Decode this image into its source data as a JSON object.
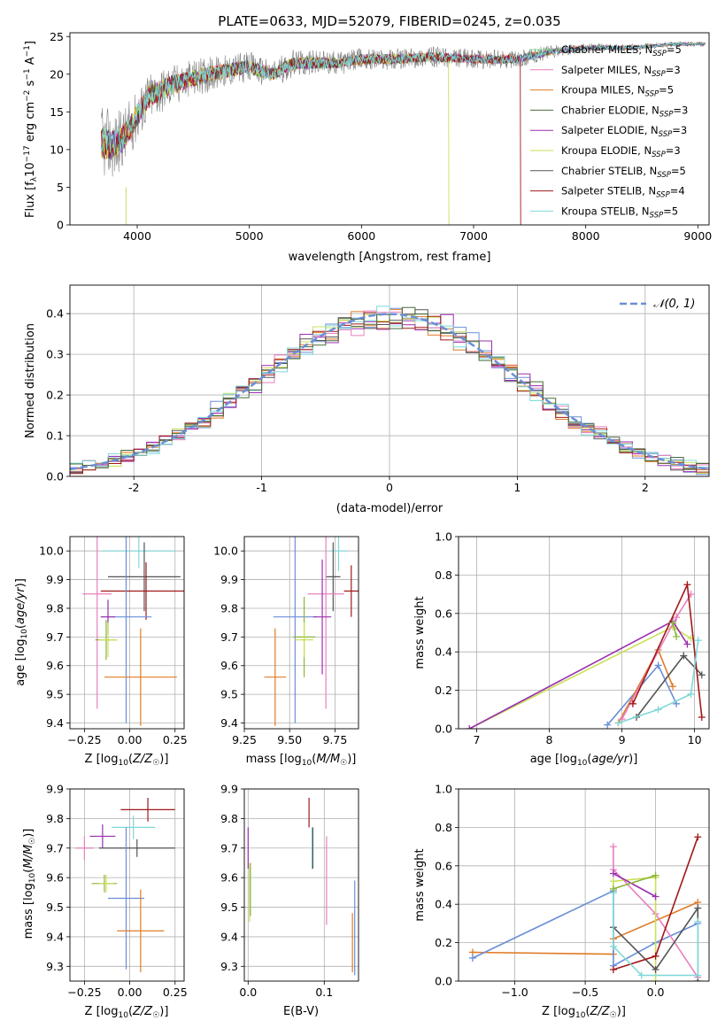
{
  "title": "PLATE=0633, MJD=52079, FIBERID=0245, z=0.035",
  "colors": {
    "Chabrier MILES": "#7fd88a",
    "Salpeter MILES": "#e97fbf",
    "Kroupa MILES": "#e07b26",
    "Chabrier ELODIE": "#4a6b3a",
    "Salpeter ELODIE": "#9a2fb0",
    "Kroupa ELODIE": "#c9e05a",
    "Chabrier STELIB": "#555555",
    "Salpeter STELIB": "#a01818",
    "Kroupa STELIB": "#7fd8d8",
    "blue": "#6a8fd8",
    "olive": "#8ab53a",
    "data": "#808080"
  },
  "chart_data": [
    {
      "id": "spectrum",
      "type": "line",
      "title": "PLATE=0633, MJD=52079, FIBERID=0245, z=0.035",
      "xlabel": "wavelength [Angstrom, rest frame]",
      "ylabel": "Flux [fλ10⁻¹⁷ erg cm⁻² s⁻¹ A⁻¹]",
      "xlim": [
        3400,
        9100
      ],
      "ylim": [
        0,
        25.5
      ],
      "xticks": [
        4000,
        5000,
        6000,
        7000,
        8000,
        9000
      ],
      "yticks": [
        0,
        5,
        10,
        15,
        20,
        25
      ],
      "legend": [
        {
          "label": "Chabrier MILES, N",
          "sub": "SSP",
          "suffix": "=5",
          "key": "Chabrier MILES"
        },
        {
          "label": "Salpeter MILES, N",
          "sub": "SSP",
          "suffix": "=3",
          "key": "Salpeter MILES"
        },
        {
          "label": "Kroupa MILES, N",
          "sub": "SSP",
          "suffix": "=5",
          "key": "Kroupa MILES"
        },
        {
          "label": "Chabrier ELODIE, N",
          "sub": "SSP",
          "suffix": "=3",
          "key": "Chabrier ELODIE"
        },
        {
          "label": "Salpeter ELODIE, N",
          "sub": "SSP",
          "suffix": "=3",
          "key": "Salpeter ELODIE"
        },
        {
          "label": "Kroupa ELODIE, N",
          "sub": "SSP",
          "suffix": "=3",
          "key": "Kroupa ELODIE"
        },
        {
          "label": "Chabrier STELIB, N",
          "sub": "SSP",
          "suffix": "=5",
          "key": "Chabrier STELIB"
        },
        {
          "label": "Salpeter STELIB, N",
          "sub": "SSP",
          "suffix": "=4",
          "key": "Salpeter STELIB"
        },
        {
          "label": "Kroupa STELIB, N",
          "sub": "SSP",
          "suffix": "=5",
          "key": "Kroupa STELIB"
        }
      ],
      "legend_loc": "upper right",
      "continuum": [
        [
          3680,
          11
        ],
        [
          3800,
          10.5
        ],
        [
          3900,
          12
        ],
        [
          4000,
          14.5
        ],
        [
          4100,
          17
        ],
        [
          4300,
          18.5
        ],
        [
          4500,
          19.5
        ],
        [
          4800,
          20.5
        ],
        [
          5000,
          21
        ],
        [
          5200,
          20
        ],
        [
          5400,
          21.5
        ],
        [
          5800,
          21.5
        ],
        [
          6000,
          22
        ],
        [
          6300,
          22
        ],
        [
          6600,
          22.3
        ],
        [
          7000,
          22
        ],
        [
          7400,
          22
        ],
        [
          7700,
          23
        ],
        [
          8000,
          23.5
        ],
        [
          8400,
          23.5
        ],
        [
          8800,
          24
        ],
        [
          9070,
          24
        ]
      ],
      "noise_amp": [
        [
          3680,
          5
        ],
        [
          4000,
          3.5
        ],
        [
          4500,
          2.5
        ],
        [
          5000,
          2
        ],
        [
          6000,
          1.5
        ],
        [
          7400,
          1.2
        ],
        [
          8000,
          0.6
        ],
        [
          9070,
          0.3
        ]
      ],
      "data_start": 3680,
      "models_start": 3680,
      "drops": [
        {
          "key": "Salpeter STELIB",
          "x": 7420
        },
        {
          "key": "Kroupa ELODIE",
          "x": 6780
        },
        {
          "key": "Kroupa ELODIE",
          "x": 3900
        }
      ]
    },
    {
      "id": "residuals",
      "type": "histogram",
      "xlabel": "(data-model)/error",
      "ylabel": "Normed distribution",
      "xlim": [
        -2.5,
        2.5
      ],
      "ylim": [
        0,
        0.47
      ],
      "xticks": [
        -2,
        -1,
        0,
        1,
        2
      ],
      "yticks": [
        0,
        0.1,
        0.2,
        0.3,
        0.4
      ],
      "bin_width": 0.1,
      "legend": [
        {
          "label": "𝒩(0, 1)",
          "style": "dashed",
          "color": "#6a8fd8"
        }
      ],
      "legend_loc": "upper right"
    },
    {
      "id": "age_vs_Z",
      "type": "errorbar",
      "xlabel": "Z [log₁₀(Z/Z☉)]",
      "ylabel": "age  [log₁₀(age/yr)]",
      "xlim": [
        -0.33,
        0.3
      ],
      "ylim": [
        9.38,
        10.05
      ],
      "xticks": [
        -0.25,
        0.0,
        0.25
      ],
      "xticklabels": [
        "−0.25",
        "0.00",
        "0.25"
      ],
      "yticks": [
        9.4,
        9.5,
        9.6,
        9.7,
        9.8,
        9.9,
        10.0
      ],
      "points": [
        {
          "key": "Kroupa STELIB",
          "x": 0.05,
          "xerr": 0.2,
          "y": 10.0,
          "yerr": 0.06
        },
        {
          "key": "Chabrier STELIB",
          "x": 0.08,
          "xerr": 0.2,
          "y": 9.91,
          "yerr": 0.12
        },
        {
          "key": "Salpeter STELIB",
          "x": 0.09,
          "xerr": 0.25,
          "y": 9.86,
          "yerr": 0.1
        },
        {
          "key": "Salpeter MILES",
          "x": -0.18,
          "xerr": 0.08,
          "y": 9.85,
          "yerr": 0.4
        },
        {
          "key": "blue",
          "x": -0.02,
          "xerr": 0.14,
          "y": 9.77,
          "yerr": 0.37
        },
        {
          "key": "Salpeter ELODIE",
          "x": -0.12,
          "xerr": 0.04,
          "y": 9.77,
          "yerr": 0.06
        },
        {
          "key": "olive",
          "x": -0.13,
          "xerr": 0.06,
          "y": 9.69,
          "yerr": 0.07
        },
        {
          "key": "Kroupa ELODIE",
          "x": -0.12,
          "xerr": 0.05,
          "y": 9.69,
          "yerr": 0.06
        },
        {
          "key": "Kroupa MILES",
          "x": 0.06,
          "xerr": 0.2,
          "y": 9.56,
          "yerr": 0.17
        }
      ]
    },
    {
      "id": "age_vs_mass",
      "type": "errorbar",
      "xlabel": "mass [log₁₀(M/M☉)]",
      "ylabel": "",
      "xlim": [
        9.25,
        9.88
      ],
      "ylim": [
        9.38,
        10.05
      ],
      "xticks": [
        9.25,
        9.5,
        9.75
      ],
      "xticklabels": [
        "9.25",
        "9.50",
        "9.75"
      ],
      "yticks": [
        9.4,
        9.5,
        9.6,
        9.7,
        9.8,
        9.9,
        10.0
      ],
      "points": [
        {
          "key": "Kroupa STELIB",
          "x": 9.77,
          "xerr": 0.05,
          "y": 10.0,
          "yerr": 0.07
        },
        {
          "key": "Chabrier STELIB",
          "x": 9.74,
          "xerr": 0.04,
          "y": 9.91,
          "yerr": 0.12
        },
        {
          "key": "Salpeter STELIB",
          "x": 9.84,
          "xerr": 0.04,
          "y": 9.86,
          "yerr": 0.09
        },
        {
          "key": "Salpeter MILES",
          "x": 9.7,
          "xerr": 0.1,
          "y": 9.85,
          "yerr": 0.4
        },
        {
          "key": "blue",
          "x": 9.53,
          "xerr": 0.12,
          "y": 9.77,
          "yerr": 0.37
        },
        {
          "key": "Salpeter ELODIE",
          "x": 9.68,
          "xerr": 0.05,
          "y": 9.77,
          "yerr": 0.2
        },
        {
          "key": "olive",
          "x": 9.58,
          "xerr": 0.06,
          "y": 9.7,
          "yerr": 0.14
        },
        {
          "key": "Kroupa ELODIE",
          "x": 9.58,
          "xerr": 0.05,
          "y": 9.69,
          "yerr": 0.06
        },
        {
          "key": "Kroupa MILES",
          "x": 9.42,
          "xerr": 0.06,
          "y": 9.56,
          "yerr": 0.17
        }
      ]
    },
    {
      "id": "mass_weight_vs_age",
      "type": "line",
      "xlabel": "age  [log₁₀(age/yr)]",
      "ylabel": "mass weight",
      "xlim": [
        6.75,
        10.2
      ],
      "ylim": [
        0,
        1.0
      ],
      "xticks": [
        7,
        8,
        9,
        10
      ],
      "yticks": [
        0.0,
        0.2,
        0.4,
        0.6,
        0.8,
        1.0
      ],
      "series": [
        {
          "key": "Kroupa ELODIE",
          "x": [
            6.9,
            9.7,
            9.95
          ],
          "y": [
            0.0,
            0.53,
            0.47
          ]
        },
        {
          "key": "Salpeter ELODIE",
          "x": [
            6.9,
            9.7,
            9.9
          ],
          "y": [
            0.0,
            0.56,
            0.44
          ]
        },
        {
          "key": "blue",
          "x": [
            8.8,
            9.5,
            9.75
          ],
          "y": [
            0.02,
            0.33,
            0.13
          ]
        },
        {
          "key": "Kroupa MILES",
          "x": [
            8.95,
            9.5,
            9.7
          ],
          "y": [
            0.03,
            0.41,
            0.22
          ]
        },
        {
          "key": "Salpeter MILES",
          "x": [
            9.0,
            9.75,
            9.95
          ],
          "y": [
            0.05,
            0.58,
            0.7
          ]
        },
        {
          "key": "Chabrier STELIB",
          "x": [
            9.2,
            9.85,
            10.1
          ],
          "y": [
            0.06,
            0.38,
            0.28
          ]
        },
        {
          "key": "Salpeter STELIB",
          "x": [
            9.15,
            9.9,
            10.1
          ],
          "y": [
            0.13,
            0.75,
            0.06
          ]
        },
        {
          "key": "Kroupa STELIB",
          "x": [
            8.95,
            9.5,
            9.95,
            10.05
          ],
          "y": [
            0.03,
            0.1,
            0.18,
            0.46
          ]
        },
        {
          "key": "olive",
          "x": [
            9.7,
            9.75
          ],
          "y": [
            0.55,
            0.48
          ]
        }
      ]
    },
    {
      "id": "mass_vs_Z",
      "type": "errorbar",
      "xlabel": "Z [log₁₀(Z/Z☉)]",
      "ylabel": "mass [log₁₀(M/M☉)]",
      "xlim": [
        -0.33,
        0.3
      ],
      "ylim": [
        9.25,
        9.9
      ],
      "xticks": [
        -0.25,
        0.0,
        0.25
      ],
      "xticklabels": [
        "−0.25",
        "0.00",
        "0.25"
      ],
      "yticks": [
        9.3,
        9.4,
        9.5,
        9.6,
        9.7,
        9.8,
        9.9
      ],
      "points": [
        {
          "key": "Salpeter STELIB",
          "x": 0.1,
          "xerr": 0.15,
          "y": 9.83,
          "yerr": 0.04
        },
        {
          "key": "Kroupa STELIB",
          "x": 0.02,
          "xerr": 0.12,
          "y": 9.77,
          "yerr": 0.04
        },
        {
          "key": "Salpeter ELODIE",
          "x": -0.15,
          "xerr": 0.07,
          "y": 9.74,
          "yerr": 0.04
        },
        {
          "key": "Chabrier STELIB",
          "x": 0.04,
          "xerr": 0.21,
          "y": 9.7,
          "yerr": 0.03
        },
        {
          "key": "Salpeter MILES",
          "x": -0.25,
          "xerr": 0.05,
          "y": 9.7,
          "yerr": 0.04
        },
        {
          "key": "olive",
          "x": -0.14,
          "xerr": 0.07,
          "y": 9.58,
          "yerr": 0.03
        },
        {
          "key": "Kroupa ELODIE",
          "x": -0.13,
          "xerr": 0.04,
          "y": 9.58,
          "yerr": 0.03
        },
        {
          "key": "blue",
          "x": -0.02,
          "xerr": 0.1,
          "y": 9.53,
          "yerr": 0.24
        },
        {
          "key": "Kroupa MILES",
          "x": 0.06,
          "xerr": 0.13,
          "y": 9.42,
          "yerr": 0.14
        }
      ]
    },
    {
      "id": "mass_vs_ebv",
      "type": "errorbar",
      "xlabel": "E(B-V)",
      "ylabel": "",
      "xlim": [
        -0.005,
        0.145
      ],
      "ylim": [
        9.25,
        9.9
      ],
      "xticks": [
        0.0,
        0.1
      ],
      "xticklabels": [
        "0.0",
        "0.1"
      ],
      "yticks": [
        9.3,
        9.4,
        9.5,
        9.6,
        9.7,
        9.8,
        9.9
      ],
      "points": [
        {
          "key": "Salpeter STELIB",
          "x": 0.08,
          "y": 9.82,
          "yerr": 0.05
        },
        {
          "key": "Kroupa STELIB",
          "x": 0.084,
          "y": 9.7,
          "yerr": 0.07
        },
        {
          "key": "Chabrier STELIB",
          "x": 0.085,
          "y": 9.7,
          "yerr": 0.07
        },
        {
          "key": "Salpeter ELODIE",
          "x": 0.0,
          "y": 9.7,
          "yerr": 0.07
        },
        {
          "key": "Kroupa ELODIE",
          "x": 0.002,
          "y": 9.55,
          "yerr": 0.1
        },
        {
          "key": "olive",
          "x": 0.003,
          "y": 9.56,
          "yerr": 0.09
        },
        {
          "key": "Salpeter MILES",
          "x": 0.103,
          "y": 9.59,
          "yerr": 0.15
        },
        {
          "key": "blue",
          "x": 0.14,
          "y": 9.43,
          "yerr": 0.16
        },
        {
          "key": "Kroupa MILES",
          "x": 0.137,
          "y": 9.38,
          "yerr": 0.1
        }
      ]
    },
    {
      "id": "mass_weight_vs_Z",
      "type": "line",
      "xlabel": "Z [log₁₀(Z/Z☉)]",
      "ylabel": "mass weight",
      "xlim": [
        -1.4,
        0.38
      ],
      "ylim": [
        0,
        1.0
      ],
      "xticks": [
        -1.0,
        -0.5,
        0.0
      ],
      "xticklabels": [
        "−1.0",
        "−0.5",
        "0.0"
      ],
      "yticks": [
        0.0,
        0.2,
        0.4,
        0.6,
        0.8,
        1.0
      ],
      "series": [
        {
          "key": "Kroupa MILES",
          "x": [
            -1.3,
            -0.3,
            -0.3,
            0.3
          ],
          "y": [
            0.15,
            0.14,
            0.22,
            0.41
          ]
        },
        {
          "key": "blue",
          "x": [
            -1.3,
            -0.3,
            -0.3,
            0.0,
            0.3
          ],
          "y": [
            0.12,
            0.47,
            0.08,
            0.2,
            0.3
          ]
        },
        {
          "key": "Salpeter MILES",
          "x": [
            -0.3,
            -0.3,
            0.0,
            0.3
          ],
          "y": [
            0.7,
            0.58,
            0.35,
            0.02
          ]
        },
        {
          "key": "Kroupa ELODIE",
          "x": [
            -0.3,
            -0.3,
            0.0,
            0.0
          ],
          "y": [
            0.46,
            0.52,
            0.54,
            0.0
          ]
        },
        {
          "key": "Salpeter ELODIE",
          "x": [
            -0.3,
            0.0
          ],
          "y": [
            0.56,
            0.44
          ]
        },
        {
          "key": "Chabrier STELIB",
          "x": [
            -0.3,
            0.0,
            0.3,
            0.3
          ],
          "y": [
            0.28,
            0.06,
            0.38,
            0.0
          ]
        },
        {
          "key": "Salpeter STELIB",
          "x": [
            -0.3,
            0.0,
            0.3
          ],
          "y": [
            0.06,
            0.13,
            0.75
          ]
        },
        {
          "key": "Kroupa STELIB",
          "x": [
            -0.3,
            -0.3,
            -0.1,
            0.3,
            0.3
          ],
          "y": [
            0.46,
            0.18,
            0.03,
            0.03,
            0.31
          ]
        },
        {
          "key": "olive",
          "x": [
            -0.3,
            0.0
          ],
          "y": [
            0.48,
            0.55
          ]
        }
      ]
    }
  ]
}
